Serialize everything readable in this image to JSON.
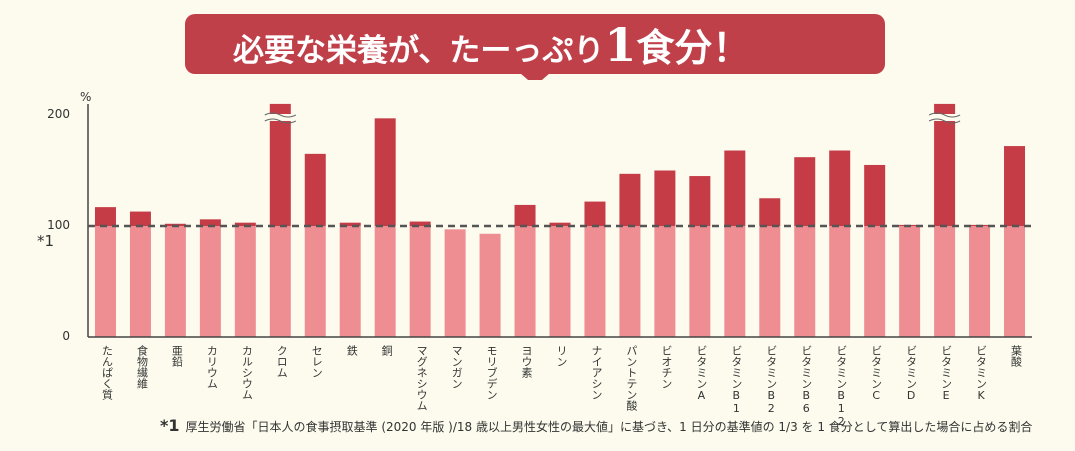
{
  "banner": {
    "text_pre": "必要な栄養が、たーっぷり",
    "text_big": "1",
    "text_post": "食分！",
    "color": "#c0404a"
  },
  "footnote": {
    "mark": "*1",
    "text": "厚生労働省「日本人の食事摂取基準 (2020 年版 )/18 歳以上男性女性の最大値」に基づき、1 日分の基準値の 1/3 を 1 食分として算出した場合に占める割合"
  },
  "ref_note": "*1",
  "chart_data": {
    "type": "bar",
    "unit": "%",
    "yticks": [
      "0",
      "100",
      "200"
    ],
    "ylim": [
      0,
      210
    ],
    "reference_line": 100,
    "colors": {
      "below": "#ee8e93",
      "above": "#c53c47",
      "refline": "#555555",
      "axis": "#444444"
    },
    "categories": [
      "たんぱく質",
      "食物繊維",
      "亜鉛",
      "カリウム",
      "カルシウム",
      "クロム",
      "セレン",
      "鉄",
      "銅",
      "マグネシウム",
      "マンガン",
      "モリブデン",
      "ヨウ素",
      "リン",
      "ナイアシン",
      "パントテン酸",
      "ビオチン",
      "ビタミンA",
      "ビタミンB1",
      "ビタミンB2",
      "ビタミンB6",
      "ビタミンB12",
      "ビタミンC",
      "ビタミンD",
      "ビタミンE",
      "ビタミンK",
      "葉酸"
    ],
    "values": [
      117,
      113,
      102,
      106,
      103,
      210,
      165,
      103,
      197,
      104,
      97,
      93,
      119,
      103,
      122,
      147,
      150,
      145,
      168,
      125,
      162,
      168,
      155,
      101,
      210,
      101,
      172
    ],
    "axis_break": [
      false,
      false,
      false,
      false,
      false,
      true,
      false,
      false,
      false,
      false,
      false,
      false,
      false,
      false,
      false,
      false,
      false,
      false,
      false,
      false,
      false,
      false,
      false,
      false,
      true,
      false,
      false
    ]
  }
}
